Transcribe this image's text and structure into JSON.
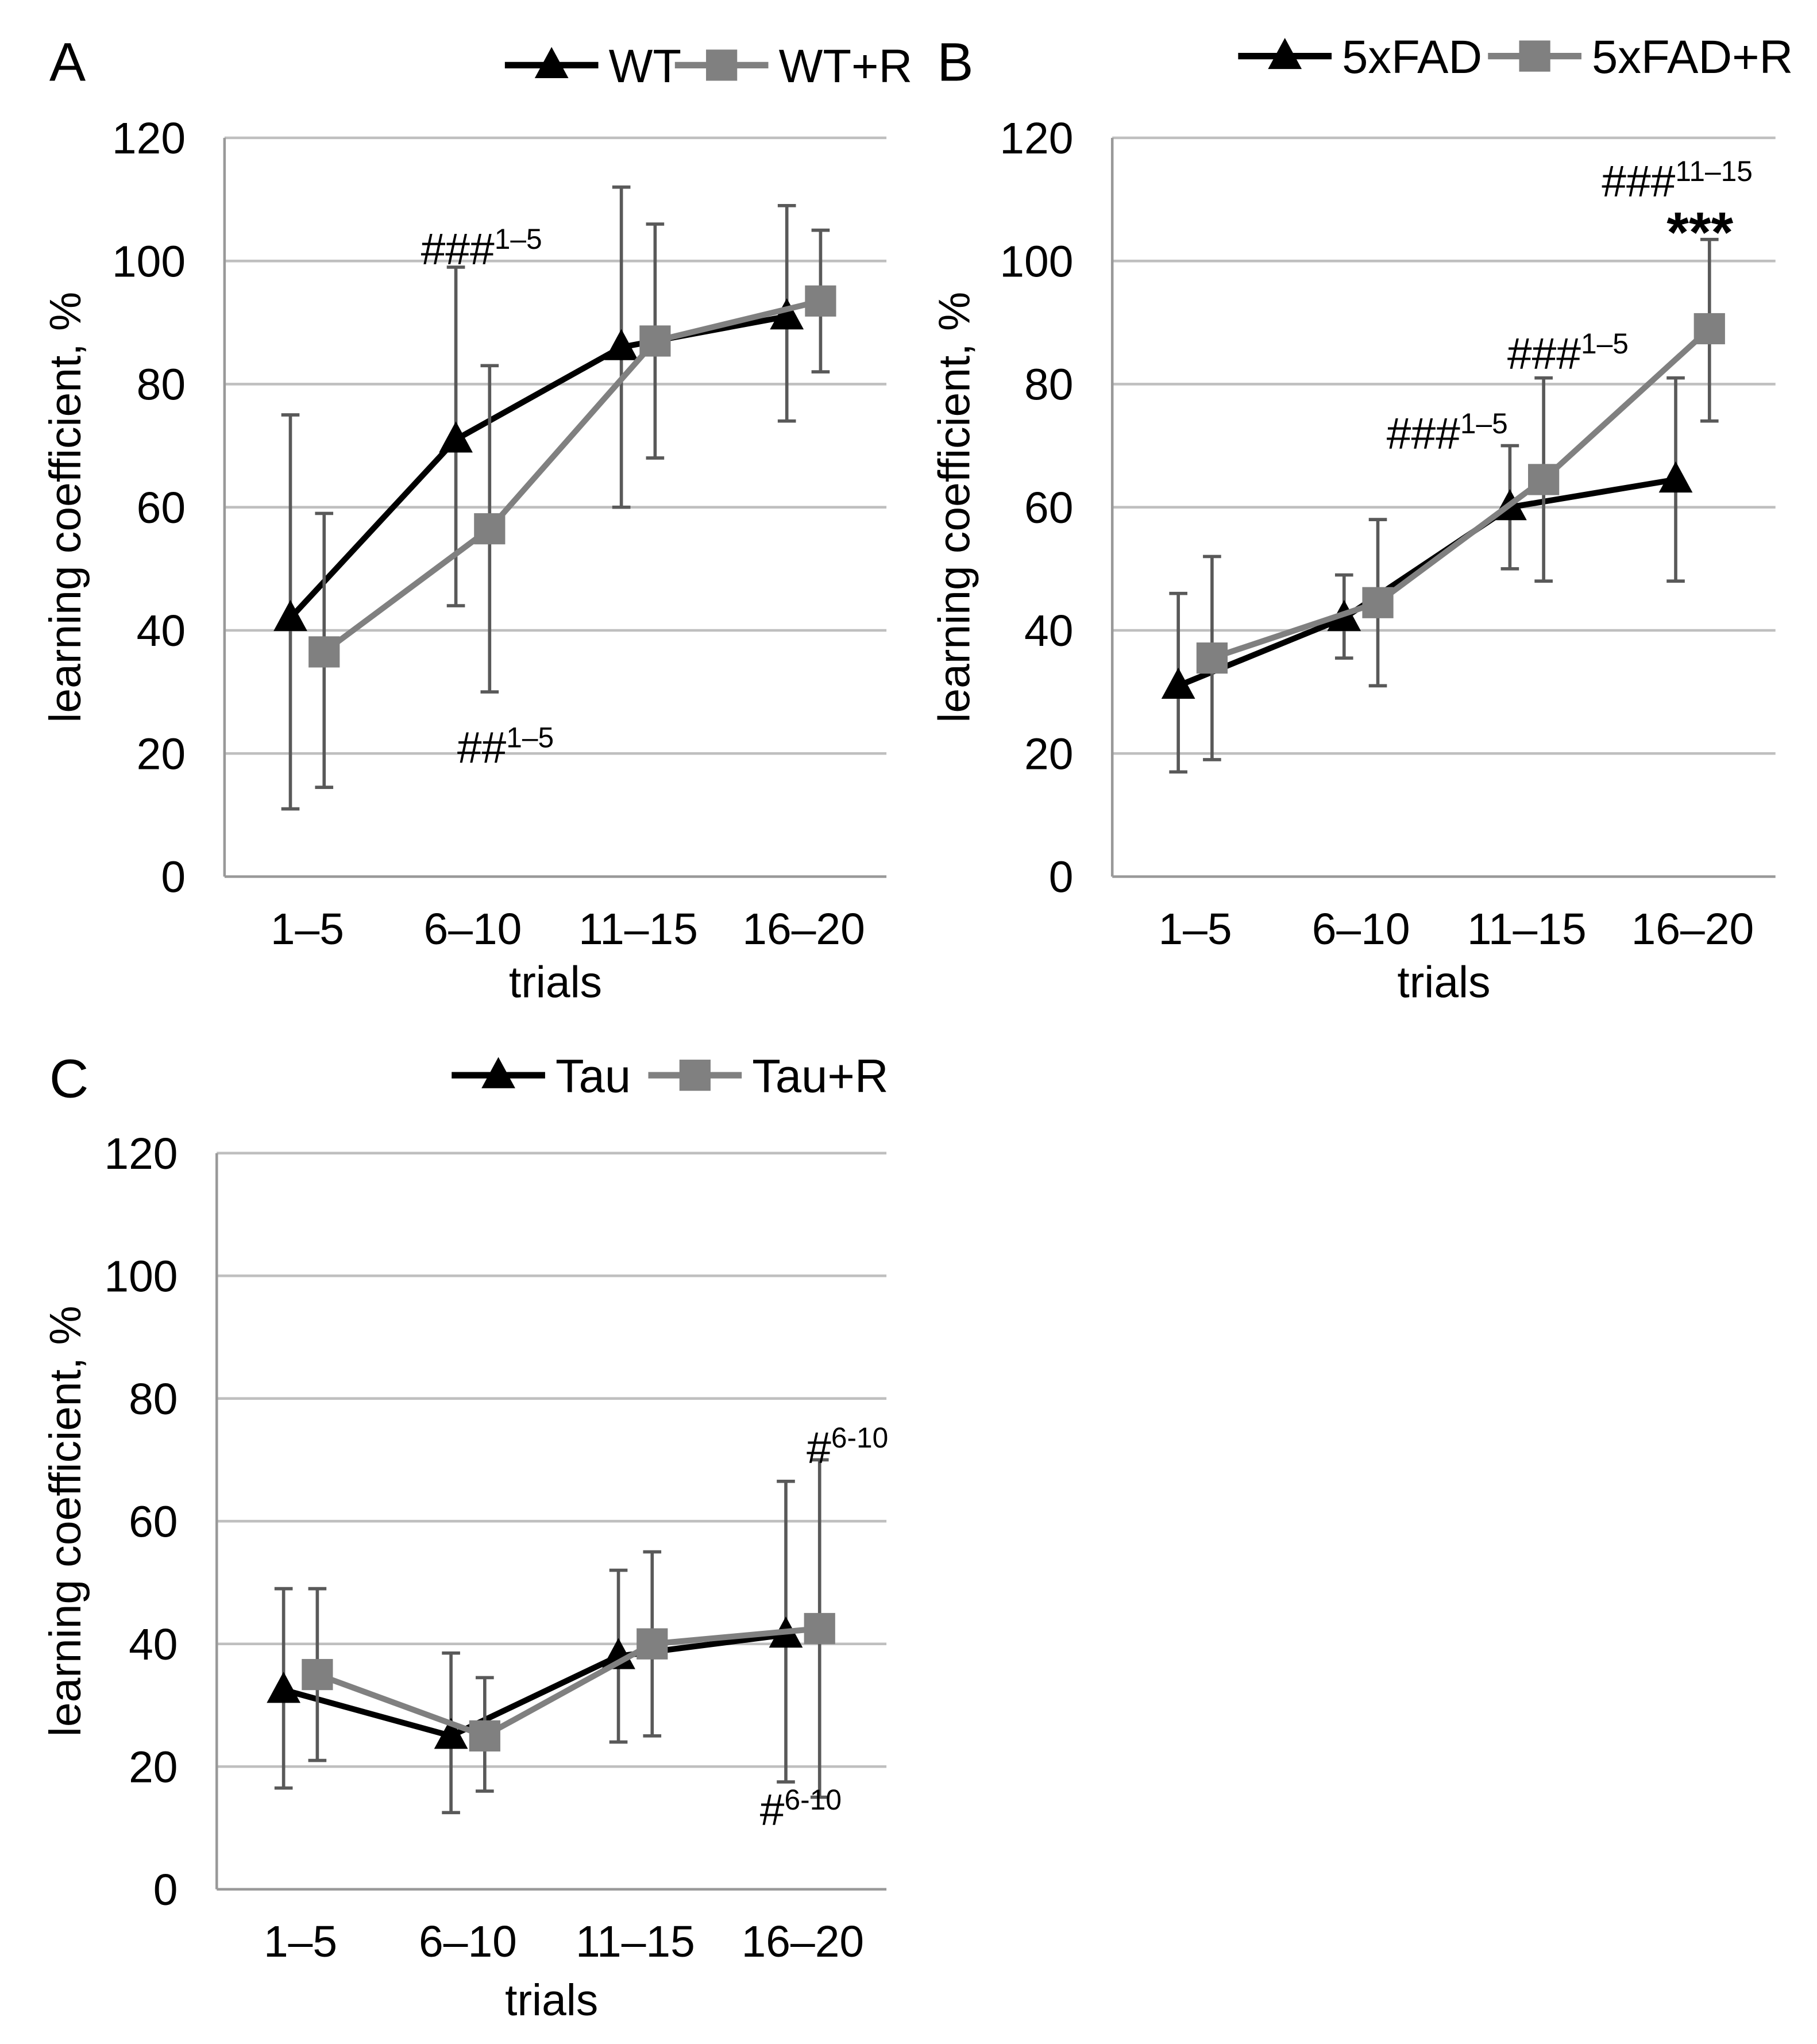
{
  "chart_data": [
    {
      "type": "line",
      "panel_label": "A",
      "categories": [
        "1–5",
        "6–10",
        "11–15",
        "16–20"
      ],
      "xlabel": "trials",
      "ylabel": "learning coefficient, %",
      "ylim": [
        0,
        120
      ],
      "yticks": [
        0,
        20,
        40,
        60,
        80,
        100,
        120
      ],
      "grid": true,
      "legend": "top-right",
      "series": [
        {
          "name": "WT",
          "marker": "triangle",
          "color": "#000000",
          "values": [
            42,
            71,
            86,
            91
          ],
          "err_low": [
            11,
            44,
            60,
            74
          ],
          "err_high": [
            75,
            99,
            112,
            109
          ]
        },
        {
          "name": "WT+R",
          "marker": "square",
          "color": "#808080",
          "values": [
            36.5,
            56.5,
            87,
            93.5
          ],
          "err_low": [
            14.5,
            30,
            68,
            82
          ],
          "err_high": [
            59,
            83,
            106,
            105
          ]
        }
      ],
      "annotations": [
        {
          "text": "###",
          "sup": "1–5",
          "category": "6–10",
          "y": 102
        },
        {
          "text": "##",
          "sup": "1–5",
          "category": "6–10",
          "y": 21
        }
      ]
    },
    {
      "type": "line",
      "panel_label": "B",
      "categories": [
        "1–5",
        "6–10",
        "11–15",
        "16–20"
      ],
      "xlabel": "trials",
      "ylabel": "learning coefficient, %",
      "ylim": [
        0,
        120
      ],
      "yticks": [
        0,
        20,
        40,
        60,
        80,
        100,
        120
      ],
      "grid": true,
      "legend": "top-right",
      "series": [
        {
          "name": "5xFAD",
          "marker": "triangle",
          "color": "#000000",
          "values": [
            31,
            42,
            60,
            64.5
          ],
          "err_low": [
            17,
            35.5,
            50,
            48
          ],
          "err_high": [
            46,
            49,
            70,
            81
          ]
        },
        {
          "name": "5xFAD+R",
          "marker": "square",
          "color": "#808080",
          "values": [
            35.5,
            44.5,
            64.5,
            89
          ],
          "err_low": [
            19,
            31,
            48,
            74
          ],
          "err_high": [
            52,
            58,
            81,
            103.5
          ]
        }
      ],
      "annotations": [
        {
          "text": "###",
          "sup": "1–5",
          "category": "11–15",
          "y": 72
        },
        {
          "text": "###",
          "sup": "1–5",
          "category": "11–15",
          "y": 85
        },
        {
          "text": "###",
          "sup": "11–15",
          "category": "16–20",
          "y": 113
        },
        {
          "text": "***",
          "sup": "",
          "category": "16–20",
          "y": 104
        }
      ]
    },
    {
      "type": "line",
      "panel_label": "C",
      "categories": [
        "1–5",
        "6–10",
        "11–15",
        "16–20"
      ],
      "xlabel": "trials",
      "ylabel": "learning coefficient, %",
      "ylim": [
        0,
        120
      ],
      "yticks": [
        0,
        20,
        40,
        60,
        80,
        100,
        120
      ],
      "grid": true,
      "legend": "top-right",
      "series": [
        {
          "name": "Tau",
          "marker": "triangle",
          "color": "#000000",
          "values": [
            32.5,
            25,
            38,
            41.5
          ],
          "err_low": [
            16.5,
            12.5,
            24,
            17.5
          ],
          "err_high": [
            49,
            38.5,
            52,
            66.5
          ]
        },
        {
          "name": "Tau+R",
          "marker": "square",
          "color": "#808080",
          "values": [
            35,
            25,
            40,
            42.5
          ],
          "err_low": [
            21,
            16,
            25,
            15
          ],
          "err_high": [
            49,
            34.5,
            55,
            70
          ]
        }
      ],
      "annotations": [
        {
          "text": "#",
          "sup": "6-10",
          "category": "16–20",
          "y": 72
        },
        {
          "text": "#",
          "sup": "6-10",
          "category": "16–20",
          "y": 13
        }
      ]
    }
  ]
}
